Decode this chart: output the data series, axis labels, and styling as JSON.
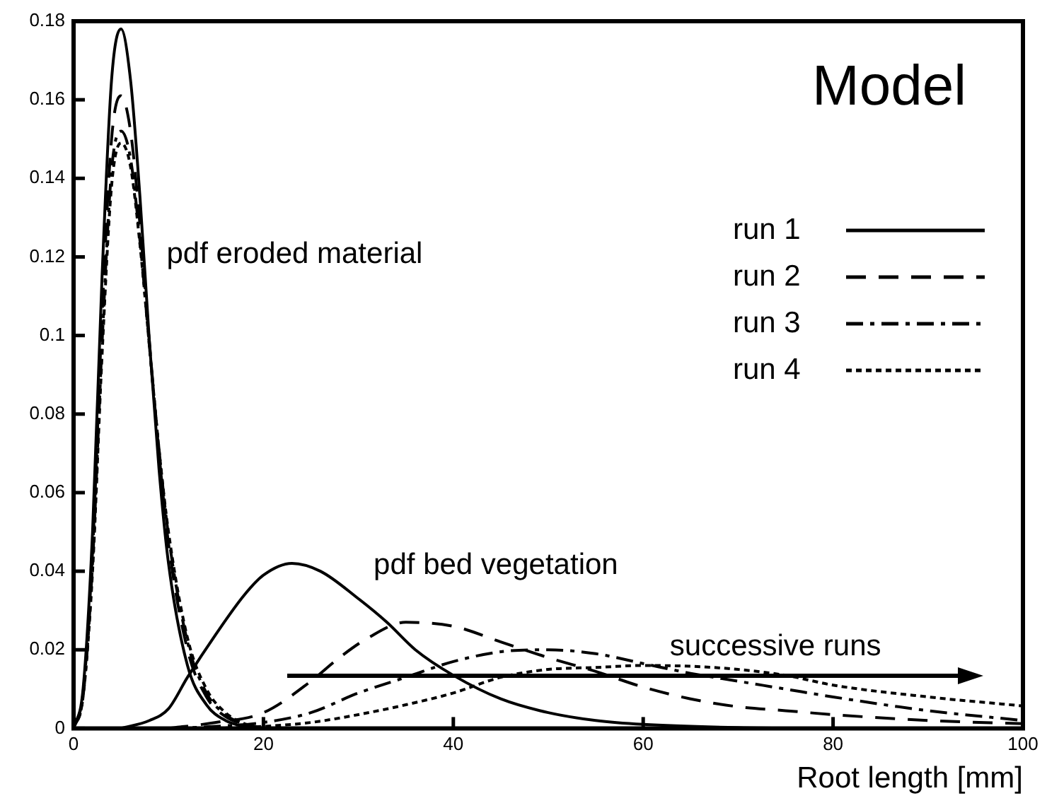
{
  "chart_data": {
    "type": "line",
    "title": "Model",
    "xlabel": "Root length [mm]",
    "xlim": [
      0,
      100
    ],
    "xticks": [
      0,
      20,
      40,
      60,
      80,
      100
    ],
    "ylim": [
      0,
      0.18
    ],
    "yticks": [
      0,
      0.02,
      0.04,
      0.06,
      0.08,
      0.1,
      0.12,
      0.14,
      0.16,
      0.18
    ],
    "grid": false,
    "legend": "top right",
    "marker": "none",
    "annotations": [
      "pdf eroded material",
      "pdf bed vegetation",
      "successive runs"
    ],
    "series": [
      {
        "name": "run 1",
        "color": "#000000",
        "line_style": "solid",
        "x": [
          5,
          8,
          10,
          12,
          15,
          18,
          20,
          23,
          26,
          30,
          33,
          36,
          40,
          45,
          50,
          55,
          60,
          70,
          80
        ],
        "values": [
          0,
          0.002,
          0.005,
          0.013,
          0.024,
          0.034,
          0.039,
          0.042,
          0.04,
          0.033,
          0.027,
          0.02,
          0.0135,
          0.0075,
          0.004,
          0.002,
          0.001,
          0.0002,
          0
        ]
      },
      {
        "name": "run 2",
        "color": "#000000",
        "line_style": "dashed",
        "x": [
          10,
          15,
          20,
          25,
          28,
          31,
          35,
          40,
          45,
          50,
          55,
          60,
          65,
          70,
          75,
          80,
          90,
          100
        ],
        "values": [
          0,
          0.0015,
          0.004,
          0.012,
          0.018,
          0.023,
          0.027,
          0.026,
          0.022,
          0.018,
          0.0145,
          0.0105,
          0.0075,
          0.0055,
          0.0045,
          0.0035,
          0.002,
          0.0012
        ]
      },
      {
        "name": "run 3",
        "color": "#000000",
        "line_style": "dashdot",
        "x": [
          10,
          15,
          20,
          25,
          30,
          35,
          40,
          45,
          50,
          55,
          60,
          65,
          70,
          75,
          80,
          90,
          100
        ],
        "values": [
          0,
          0.0005,
          0.0015,
          0.004,
          0.009,
          0.013,
          0.017,
          0.0195,
          0.02,
          0.019,
          0.0165,
          0.014,
          0.012,
          0.01,
          0.008,
          0.0045,
          0.002
        ]
      },
      {
        "name": "run 4",
        "color": "#000000",
        "line_style": "dotted",
        "x": [
          15,
          20,
          25,
          30,
          35,
          40,
          45,
          50,
          55,
          60,
          65,
          70,
          75,
          80,
          90,
          100
        ],
        "values": [
          0,
          0.0005,
          0.0015,
          0.0035,
          0.006,
          0.009,
          0.013,
          0.015,
          0.0155,
          0.016,
          0.0158,
          0.015,
          0.0135,
          0.011,
          0.008,
          0.0057
        ]
      },
      {
        "color": "#000000",
        "line_style": "solid",
        "x": [
          0,
          1,
          2,
          3,
          4,
          5,
          6,
          7,
          8,
          9,
          10,
          12,
          14,
          16,
          18,
          20
        ],
        "values": [
          0,
          0.01,
          0.05,
          0.115,
          0.165,
          0.178,
          0.165,
          0.135,
          0.098,
          0.066,
          0.042,
          0.016,
          0.006,
          0.002,
          0.0005,
          0
        ]
      },
      {
        "color": "#000000",
        "line_style": "dashed",
        "x": [
          0,
          1,
          2,
          3,
          4,
          5,
          6,
          7,
          8,
          9,
          10,
          12,
          14,
          16,
          18,
          20
        ],
        "values": [
          0,
          0.009,
          0.045,
          0.105,
          0.15,
          0.161,
          0.152,
          0.128,
          0.098,
          0.07,
          0.047,
          0.02,
          0.008,
          0.003,
          0.001,
          0
        ]
      },
      {
        "color": "#000000",
        "line_style": "dashdot",
        "x": [
          0,
          1,
          2,
          3,
          4,
          5,
          6,
          7,
          8,
          9,
          10,
          12,
          14,
          16,
          18,
          20
        ],
        "values": [
          0,
          0.008,
          0.042,
          0.098,
          0.142,
          0.152,
          0.145,
          0.124,
          0.097,
          0.071,
          0.049,
          0.022,
          0.009,
          0.0035,
          0.001,
          0
        ]
      },
      {
        "color": "#000000",
        "line_style": "dotted",
        "x": [
          0,
          1,
          2,
          3,
          4,
          5,
          6,
          7,
          8,
          9,
          10,
          12,
          14,
          16,
          18,
          20
        ],
        "values": [
          0,
          0.008,
          0.04,
          0.095,
          0.138,
          0.149,
          0.143,
          0.123,
          0.097,
          0.071,
          0.05,
          0.023,
          0.01,
          0.004,
          0.0012,
          0
        ]
      }
    ]
  }
}
